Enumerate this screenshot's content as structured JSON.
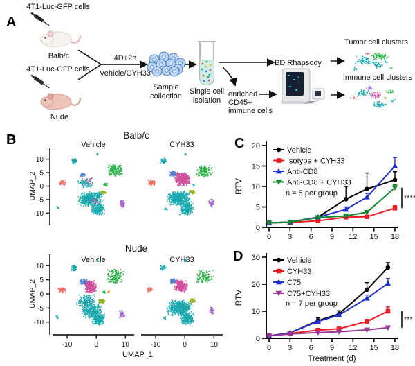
{
  "panels": {
    "a": "A",
    "b": "B",
    "c": "C",
    "d": "D"
  },
  "colors": {
    "teal": "#1ba9ae",
    "green": "#2eb24a",
    "salmon": "#ef6a61",
    "magenta": "#d2519f",
    "blue": "#4d7fd2",
    "olive": "#93b01c",
    "purple": "#a568d2",
    "orange": "#f49d2e"
  },
  "panelA": {
    "texts": {
      "cells1": "4T1-Luc-GFP cells",
      "cells2": "4T1-Luc-GFP cells",
      "mouse1": "Balb/c",
      "mouse2": "Nude",
      "duration": "4D+2h",
      "treatment": "Vehicle/CYH33",
      "sample_l1": "Sample",
      "sample_l2": "collection",
      "single_l1": "Single cell",
      "single_l2": "isolation",
      "enriched_l1": "enriched",
      "enriched_l2": "CD45+",
      "enriched_l3": "immune cells",
      "bd": "BD Rhapsody",
      "tumor": "Tumor cell clusters",
      "immune": "Immune cell clusters"
    },
    "tumor_clusters": [
      [
        "teal",
        0.3,
        0.45,
        0.17,
        0.16,
        70
      ],
      [
        "green",
        0.62,
        0.3,
        0.2,
        0.16,
        80
      ],
      [
        "teal",
        0.55,
        0.62,
        0.14,
        0.12,
        40
      ],
      [
        "magenta",
        0.38,
        0.22,
        0.05,
        0.05,
        8
      ],
      [
        "teal",
        0.15,
        0.75,
        0.06,
        0.06,
        10
      ],
      [
        "green",
        0.85,
        0.7,
        0.05,
        0.05,
        8
      ],
      [
        "teal",
        0.75,
        0.5,
        0.05,
        0.05,
        8
      ]
    ],
    "immune_clusters": [
      [
        "teal",
        0.3,
        0.35,
        0.15,
        0.13,
        50
      ],
      [
        "magenta",
        0.52,
        0.42,
        0.13,
        0.13,
        45
      ],
      [
        "purple",
        0.42,
        0.18,
        0.08,
        0.07,
        15
      ],
      [
        "teal",
        0.6,
        0.72,
        0.16,
        0.13,
        50
      ],
      [
        "green",
        0.78,
        0.3,
        0.09,
        0.08,
        18
      ],
      [
        "salmon",
        0.1,
        0.5,
        0.05,
        0.05,
        8
      ],
      [
        "teal",
        0.85,
        0.6,
        0.05,
        0.05,
        8
      ],
      [
        "olive",
        0.7,
        0.52,
        0.05,
        0.04,
        6
      ]
    ]
  },
  "panelB": {
    "ylabel": "UMAP_2",
    "xlabel": "UMAP_1",
    "yticks": [
      10,
      5,
      0,
      -5,
      -10
    ],
    "xticks": [
      -10,
      0,
      10
    ],
    "sections": [
      {
        "title": "Balb/c",
        "facets": [
          {
            "title": "Vehicle",
            "clusters": [
              [
                "teal",
                -7.5,
                9.3,
                1.1,
                1.2,
                40
              ],
              [
                "teal",
                0.3,
                11.8,
                0.5,
                0.5,
                8
              ],
              [
                "teal",
                -13.2,
                -8.0,
                0.7,
                0.5,
                12
              ],
              [
                "green",
                6.5,
                6.0,
                3.1,
                2.5,
                150
              ],
              [
                "green",
                3.2,
                0.6,
                0.8,
                0.7,
                18
              ],
              [
                "salmon",
                -11.6,
                1.2,
                1.3,
                1.1,
                50
              ],
              [
                "blue",
                -4.6,
                4.2,
                1.0,
                0.8,
                35
              ],
              [
                "magenta",
                -2.6,
                2.0,
                2.2,
                2.0,
                30
              ],
              [
                "teal",
                -3.8,
                1.0,
                3.2,
                1.8,
                70
              ],
              [
                "olive",
                2.2,
                -2.3,
                1.2,
                0.8,
                40
              ],
              [
                "teal",
                -2.0,
                -4.8,
                4.2,
                2.8,
                520
              ],
              [
                "teal",
                0.6,
                -8.6,
                2.5,
                2.3,
                230
              ],
              [
                "purple",
                8.8,
                -6.6,
                1.0,
                1.6,
                45
              ],
              [
                "magenta",
                -0.5,
                -5.5,
                2.0,
                1.5,
                15
              ]
            ]
          },
          {
            "title": "CYH33",
            "clusters": [
              [
                "teal",
                -7.3,
                9.3,
                1.1,
                1.2,
                40
              ],
              [
                "teal",
                0.3,
                11.8,
                0.5,
                0.5,
                8
              ],
              [
                "green",
                6.8,
                5.6,
                3.0,
                2.5,
                130
              ],
              [
                "salmon",
                -11.4,
                1.3,
                1.4,
                1.2,
                55
              ],
              [
                "blue",
                -3.9,
                4.5,
                1.4,
                1.1,
                70
              ],
              [
                "magenta",
                -0.9,
                2.6,
                2.7,
                2.6,
                430
              ],
              [
                "teal",
                -2.0,
                -4.6,
                4.3,
                2.9,
                540
              ],
              [
                "teal",
                0.7,
                -8.6,
                2.5,
                2.3,
                240
              ],
              [
                "olive",
                2.5,
                -2.1,
                1.2,
                0.8,
                45
              ],
              [
                "purple",
                9.2,
                -6.4,
                1.0,
                1.7,
                55
              ],
              [
                "teal",
                -6.5,
                -8.5,
                0.6,
                0.5,
                10
              ],
              [
                "teal",
                3.2,
                0.3,
                0.6,
                0.5,
                10
              ]
            ]
          }
        ]
      },
      {
        "title": "Nude",
        "facets": [
          {
            "title": "Vehicle",
            "clusters": [
              [
                "teal",
                -7.6,
                9.2,
                1.1,
                1.2,
                40
              ],
              [
                "teal",
                0.2,
                11.8,
                0.5,
                0.5,
                8
              ],
              [
                "green",
                6.6,
                6.2,
                3.1,
                2.6,
                160
              ],
              [
                "green",
                2.8,
                0.6,
                0.7,
                0.6,
                14
              ],
              [
                "orange",
                4.3,
                0.8,
                0.5,
                0.35,
                8
              ],
              [
                "salmon",
                -11.8,
                1.4,
                1.4,
                1.2,
                55
              ],
              [
                "blue",
                -4.2,
                4.3,
                1.6,
                1.1,
                85
              ],
              [
                "magenta",
                -2.0,
                2.5,
                2.1,
                2.3,
                260
              ],
              [
                "teal",
                -3.5,
                -2.5,
                3.6,
                2.6,
                160
              ],
              [
                "olive",
                1.8,
                -2.7,
                1.2,
                0.8,
                42
              ],
              [
                "teal",
                -1.5,
                -6.0,
                3.8,
                2.8,
                340
              ],
              [
                "teal",
                0.8,
                -9.0,
                2.4,
                2.2,
                220
              ],
              [
                "purple",
                8.8,
                -7.2,
                1.0,
                1.6,
                42
              ],
              [
                "teal",
                -13.4,
                -8.2,
                0.6,
                0.5,
                10
              ]
            ]
          },
          {
            "title": "CYH33",
            "clusters": [
              [
                "teal",
                -7.4,
                9.3,
                1.0,
                1.1,
                35
              ],
              [
                "teal",
                0.3,
                11.8,
                0.5,
                0.5,
                8
              ],
              [
                "green",
                7.0,
                6.0,
                3.0,
                2.5,
                110
              ],
              [
                "salmon",
                -12.0,
                1.5,
                1.0,
                0.9,
                28
              ],
              [
                "blue",
                -3.9,
                4.5,
                1.3,
                1.0,
                65
              ],
              [
                "magenta",
                -1.3,
                2.7,
                2.3,
                2.3,
                300
              ],
              [
                "teal",
                -1.8,
                -5.0,
                4.4,
                3.0,
                560
              ],
              [
                "teal",
                0.8,
                -8.8,
                2.4,
                2.2,
                220
              ],
              [
                "olive",
                2.5,
                -2.3,
                1.2,
                0.8,
                42
              ],
              [
                "purple",
                9.3,
                -6.0,
                0.9,
                1.5,
                38
              ],
              [
                "teal",
                -6.8,
                -8.6,
                0.6,
                0.5,
                10
              ]
            ]
          }
        ]
      }
    ]
  },
  "chart_data": [
    {
      "panel": "C",
      "type": "line",
      "ylabel": "RTV",
      "xlabel": "",
      "ylim": [
        0,
        20
      ],
      "yticks": [
        0,
        5,
        10,
        15,
        20
      ],
      "xticks": [
        0,
        3,
        6,
        9,
        12,
        15,
        18
      ],
      "x": [
        0,
        3,
        7,
        11,
        14,
        18
      ],
      "series": [
        {
          "name": "Vehicle",
          "color": "#000000",
          "marker": "circle",
          "values": [
            1.1,
            1.3,
            2.5,
            6.9,
            9.4,
            11.6
          ],
          "err": [
            0,
            0,
            0,
            3.1,
            3.9,
            2.0
          ]
        },
        {
          "name": "Isotype + CYH33",
          "color": "#ec1c24",
          "marker": "square",
          "values": [
            1.1,
            1.2,
            1.6,
            2.5,
            2.6,
            4.7
          ],
          "err": [
            0,
            0,
            0,
            0.3,
            0.3,
            0.6
          ]
        },
        {
          "name": "Anti-CD8",
          "color": "#2331c8",
          "marker": "triangle-up",
          "values": [
            1.1,
            1.3,
            2.5,
            4.4,
            7.4,
            15.0
          ],
          "err": [
            0,
            0,
            0,
            0.6,
            0.9,
            2.1
          ]
        },
        {
          "name": "Anti-CD8 + CYH33",
          "color": "#15872f",
          "marker": "triangle-down",
          "values": [
            1.1,
            1.3,
            2.4,
            2.8,
            3.7,
            9.7
          ],
          "err": [
            0,
            0,
            0,
            0.3,
            0.4,
            0.7
          ]
        }
      ],
      "note": "n = 5 per group",
      "sig": {
        "stars": "****",
        "top": 9.7,
        "bottom": 4.7
      }
    },
    {
      "panel": "D",
      "type": "line",
      "ylabel": "RTV",
      "xlabel": "Treatment (d)",
      "ylim": [
        0,
        30
      ],
      "yticks": [
        0,
        10,
        20,
        30
      ],
      "xticks": [
        0,
        3,
        6,
        9,
        12,
        15,
        18
      ],
      "x": [
        0,
        3,
        7,
        10,
        14,
        17
      ],
      "series": [
        {
          "name": "Vehicle",
          "color": "#000000",
          "marker": "circle",
          "values": [
            0.9,
            2.0,
            6.5,
            9.0,
            18.0,
            26.2
          ],
          "err": [
            0,
            0,
            1.0,
            1.2,
            2.6,
            1.8
          ]
        },
        {
          "name": "CYH33",
          "color": "#ec1c24",
          "marker": "square",
          "values": [
            0.9,
            1.8,
            3.0,
            3.5,
            6.2,
            10.0
          ],
          "err": [
            0,
            0,
            0.4,
            0.5,
            0.8,
            1.6
          ]
        },
        {
          "name": "C75",
          "color": "#2331c8",
          "marker": "triangle-up",
          "values": [
            0.9,
            2.0,
            6.2,
            8.6,
            14.8,
            20.3
          ],
          "err": [
            0,
            0,
            0.5,
            0.6,
            1.2,
            1.8
          ]
        },
        {
          "name": "C75+CYH33",
          "color": "#973896",
          "marker": "triangle-down",
          "values": [
            0.9,
            1.6,
            2.1,
            2.4,
            3.1,
            3.9
          ],
          "err": [
            0,
            0,
            0.2,
            0.3,
            0.4,
            0.5
          ]
        }
      ],
      "note": "n = 7 per group",
      "sig": {
        "stars": "***",
        "top": 10.0,
        "bottom": 3.9
      }
    }
  ]
}
